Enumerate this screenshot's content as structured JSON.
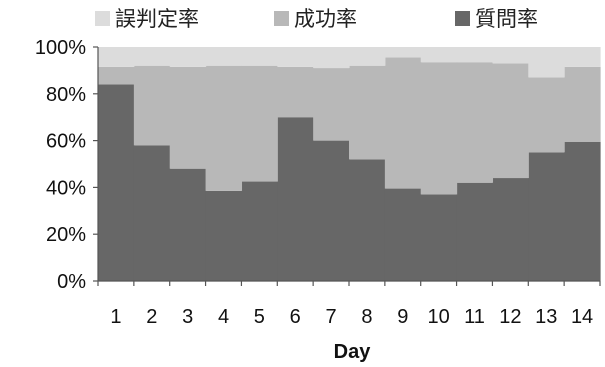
{
  "chart_data": {
    "type": "area",
    "stacked_percent": true,
    "title": "",
    "xlabel": "Day",
    "ylabel": "",
    "categories": [
      "1",
      "2",
      "3",
      "4",
      "5",
      "6",
      "7",
      "8",
      "9",
      "10",
      "11",
      "12",
      "13",
      "14"
    ],
    "y_ticks": [
      "0%",
      "20%",
      "40%",
      "60%",
      "80%",
      "100%"
    ],
    "ylim": [
      0,
      100
    ],
    "legend_position": "top",
    "series": [
      {
        "name": "質問率",
        "color": "#676767",
        "values": [
          84,
          58,
          48,
          38.5,
          42.5,
          70,
          60,
          52,
          39.5,
          37,
          42,
          44,
          55,
          59.5
        ]
      },
      {
        "name": "成功率",
        "color": "#b8b8b8",
        "values": [
          7.5,
          34,
          43.5,
          53.5,
          49.5,
          21.5,
          31,
          40,
          56,
          56.5,
          51.5,
          49,
          32,
          32
        ]
      },
      {
        "name": "誤判定率",
        "color": "#dcdcdc",
        "values": [
          8.5,
          8,
          8.5,
          8,
          8,
          8.5,
          9,
          8,
          4.5,
          6.5,
          6.5,
          7,
          13,
          8.5
        ]
      }
    ],
    "legend_order": [
      "誤判定率",
      "成功率",
      "質問率"
    ]
  }
}
